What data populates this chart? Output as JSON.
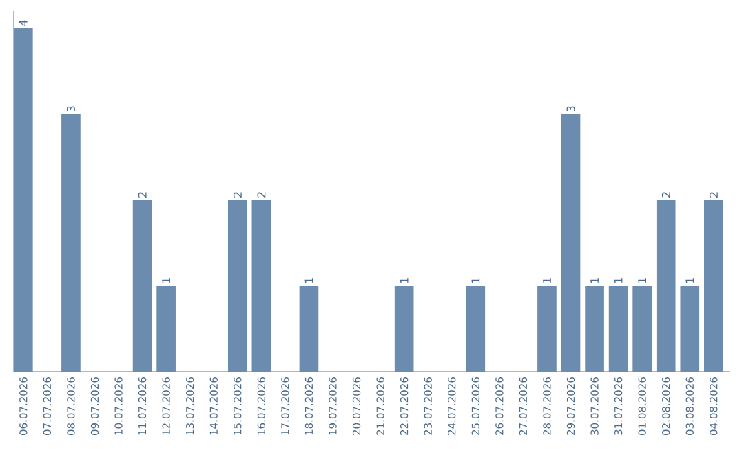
{
  "chart_data": {
    "type": "bar",
    "categories": [
      "06.07.2026",
      "07.07.2026",
      "08.07.2026",
      "09.07.2026",
      "10.07.2026",
      "11.07.2026",
      "12.07.2026",
      "13.07.2026",
      "14.07.2026",
      "15.07.2026",
      "16.07.2026",
      "17.07.2026",
      "18.07.2026",
      "19.07.2026",
      "20.07.2026",
      "21.07.2026",
      "22.07.2026",
      "23.07.2026",
      "24.07.2026",
      "25.07.2026",
      "26.07.2026",
      "27.07.2026",
      "28.07.2026",
      "29.07.2026",
      "30.07.2026",
      "31.07.2026",
      "01.08.2026",
      "02.08.2026",
      "03.08.2026",
      "04.08.2026"
    ],
    "values": [
      4,
      0,
      3,
      0,
      0,
      2,
      1,
      0,
      0,
      2,
      2,
      0,
      1,
      0,
      0,
      0,
      1,
      0,
      0,
      1,
      0,
      0,
      1,
      3,
      1,
      1,
      1,
      2,
      1,
      2
    ],
    "value_labels": [
      "4",
      null,
      "3",
      null,
      null,
      "2",
      "1",
      null,
      null,
      "2",
      "2",
      null,
      "1",
      null,
      null,
      null,
      "1",
      null,
      null,
      "1",
      null,
      null,
      "1",
      "3",
      "1",
      "1",
      "1",
      "2",
      "1",
      "2"
    ],
    "color": "#6b8cae",
    "ylim": [
      0,
      4.2
    ],
    "tick_labels": "x",
    "grid": false
  }
}
